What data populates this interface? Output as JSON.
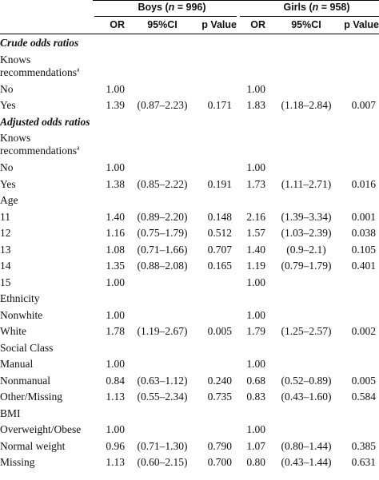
{
  "header": {
    "boys_label": "Boys (",
    "boys_n": "n",
    "boys_count": " = 996)",
    "girls_label": "Girls (",
    "girls_n": "n",
    "girls_count": " = 958)",
    "columns": [
      "OR",
      "95%CI",
      "p Value",
      "OR",
      "95%CI",
      "p Value"
    ]
  },
  "rows": [
    {
      "label": "Crude odds ratios",
      "type": "section"
    },
    {
      "label": "Knows recommendations",
      "sup": "a",
      "type": "wrap"
    },
    {
      "label": "No",
      "or1": "1.00",
      "ci1": "",
      "p1": "",
      "or2": "1.00",
      "ci2": "",
      "p2": ""
    },
    {
      "label": "Yes",
      "or1": "1.39",
      "ci1": "(0.87–2.23)",
      "p1": "0.171",
      "or2": "1.83",
      "ci2": "(1.18–2.84)",
      "p2": "0.007"
    },
    {
      "label": "Adjusted odds ratios",
      "type": "section"
    },
    {
      "label": "Knows recommendations",
      "sup": "a",
      "type": "wrap"
    },
    {
      "label": "No",
      "or1": "1.00",
      "ci1": "",
      "p1": "",
      "or2": "1.00",
      "ci2": "",
      "p2": ""
    },
    {
      "label": "Yes",
      "or1": "1.38",
      "ci1": "(0.85–2.22)",
      "p1": "0.191",
      "or2": "1.73",
      "ci2": "(1.11–2.71)",
      "p2": "0.016"
    },
    {
      "label": "Age",
      "type": "group"
    },
    {
      "label": "11",
      "or1": "1.40",
      "ci1": "(0.89–2.20)",
      "p1": "0.148",
      "or2": "2.16",
      "ci2": "(1.39–3.34)",
      "p2": "0.001"
    },
    {
      "label": "12",
      "or1": "1.16",
      "ci1": "(0.75–1.79)",
      "p1": "0.512",
      "or2": "1.57",
      "ci2": "(1.03–2.39)",
      "p2": "0.038"
    },
    {
      "label": "13",
      "or1": "1.08",
      "ci1": "(0.71–1.66)",
      "p1": "0.707",
      "or2": "1.40",
      "ci2": "(0.9–2.1)",
      "p2": "0.105"
    },
    {
      "label": "14",
      "or1": "1.35",
      "ci1": "(0.88–2.08)",
      "p1": "0.165",
      "or2": "1.19",
      "ci2": "(0.79–1.79)",
      "p2": "0.401"
    },
    {
      "label": "15",
      "or1": "1.00",
      "ci1": "",
      "p1": "",
      "or2": "1.00",
      "ci2": "",
      "p2": ""
    },
    {
      "label": "Ethnicity",
      "type": "group"
    },
    {
      "label": "Nonwhite",
      "or1": "1.00",
      "ci1": "",
      "p1": "",
      "or2": "1.00",
      "ci2": "",
      "p2": ""
    },
    {
      "label": "White",
      "or1": "1.78",
      "ci1": "(1.19–2.67)",
      "p1": "0.005",
      "or2": "1.79",
      "ci2": "(1.25–2.57)",
      "p2": "0.002"
    },
    {
      "label": "Social Class",
      "type": "group"
    },
    {
      "label": "Manual",
      "or1": "1.00",
      "ci1": "",
      "p1": "",
      "or2": "1.00",
      "ci2": "",
      "p2": ""
    },
    {
      "label": "Nonmanual",
      "or1": "0.84",
      "ci1": "(0.63–1.12)",
      "p1": "0.240",
      "or2": "0.68",
      "ci2": "(0.52–0.89)",
      "p2": "0.005"
    },
    {
      "label": "Other/Missing",
      "or1": "1.13",
      "ci1": "(0.55–2.34)",
      "p1": "0.735",
      "or2": "0.83",
      "ci2": "(0.43–1.60)",
      "p2": "0.584"
    },
    {
      "label": "BMI",
      "type": "group"
    },
    {
      "label": "Overweight/Obese",
      "or1": "1.00",
      "ci1": "",
      "p1": "",
      "or2": "1.00",
      "ci2": "",
      "p2": ""
    },
    {
      "label": "Normal weight",
      "or1": "0.96",
      "ci1": "(0.71–1.30)",
      "p1": "0.790",
      "or2": "1.07",
      "ci2": "(0.80–1.44)",
      "p2": "0.385"
    },
    {
      "label": "Missing",
      "or1": "1.13",
      "ci1": "(0.60–2.15)",
      "p1": "0.700",
      "or2": "0.80",
      "ci2": "(0.43–1.44)",
      "p2": "0.631"
    }
  ]
}
